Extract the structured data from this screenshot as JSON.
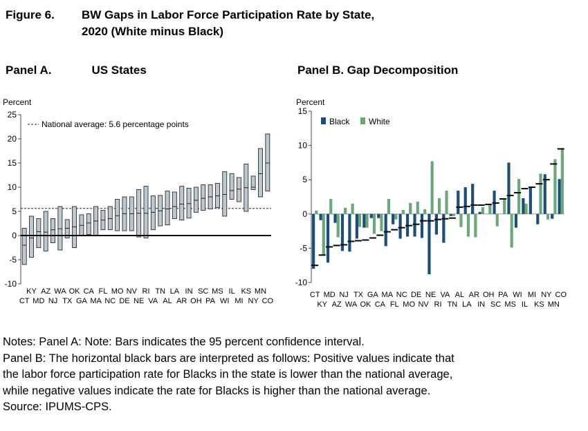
{
  "figure": {
    "number": "Figure 6.",
    "title_line1": "BW Gaps in Labor Force Participation Rate by State,",
    "title_line2": "2020 (White minus Black)"
  },
  "panelA": {
    "title_label": "Panel A.",
    "title_text": "US States"
  },
  "panelB": {
    "title": "Panel B. Gap Decomposition"
  },
  "notes": [
    "Notes: Panel A: Note: Bars indicates the 95 percent confidence interval.",
    "Panel B: The horizontal black bars are interpreted as follows: Positive values indicate that",
    "the labor force participation rate for Blacks in the state is lower than the national average,",
    "while negative values indicate the rate for Blacks is higher than the national average.",
    "Source: IPUMS-CPS."
  ],
  "colors": {
    "ci_fill": "#bcc8cf",
    "ci_stroke": "#2b2b2b",
    "black_series": "#1b4f7a",
    "white_series": "#6aa879"
  },
  "chart_data": [
    {
      "type": "bar",
      "subtype": "range-bar",
      "ylabel": "Percent",
      "ylim": [
        -10,
        25
      ],
      "yticks": [
        -10,
        -5,
        0,
        5,
        10,
        15,
        20,
        25
      ],
      "grid": false,
      "reference_line": {
        "value": 5.6,
        "label": "National average: 5.6 percentage points",
        "style": "dashed"
      },
      "categories": [
        "CT",
        "KY",
        "MD",
        "AZ",
        "NJ",
        "WA",
        "TX",
        "OK",
        "GA",
        "CA",
        "MA",
        "FL",
        "NC",
        "MO",
        "DE",
        "NV",
        "NE",
        "RI",
        "VA",
        "TN",
        "AL",
        "LA",
        "AR",
        "IN",
        "OH",
        "SC",
        "PA",
        "MS",
        "WI",
        "IL",
        "MI",
        "KS",
        "NY",
        "MN",
        "CO"
      ],
      "low": [
        -6.0,
        -4.5,
        -2.5,
        -3.2,
        -1.5,
        -3.0,
        -0.5,
        -2.5,
        0.0,
        0.2,
        0.0,
        1.2,
        1.2,
        1.0,
        1.0,
        1.0,
        -0.3,
        -0.5,
        1.2,
        2.0,
        2.2,
        3.5,
        3.2,
        3.6,
        4.8,
        5.2,
        5.5,
        5.8,
        4.0,
        7.5,
        7.0,
        5.0,
        9.5,
        8.0,
        9.2
      ],
      "high": [
        1.5,
        4.0,
        3.5,
        5.0,
        3.5,
        6.0,
        3.3,
        6.0,
        4.3,
        4.5,
        6.0,
        5.2,
        6.0,
        7.5,
        8.0,
        8.0,
        9.5,
        10.2,
        8.2,
        8.3,
        9.2,
        9.0,
        10.2,
        9.8,
        10.0,
        10.5,
        10.5,
        10.8,
        13.2,
        12.8,
        12.0,
        14.8,
        12.3,
        18.0,
        21.0
      ],
      "estimate": [
        -2.0,
        -0.5,
        0.8,
        0.7,
        1.2,
        1.4,
        1.5,
        1.8,
        2.1,
        2.6,
        3.0,
        3.2,
        3.5,
        4.1,
        4.5,
        4.5,
        4.6,
        4.6,
        4.8,
        5.1,
        5.5,
        6.0,
        6.5,
        6.6,
        7.3,
        7.7,
        8.0,
        8.2,
        8.5,
        9.3,
        9.6,
        9.9,
        10.0,
        12.8,
        15.0
      ]
    },
    {
      "type": "bar",
      "subtype": "diverging-stacked",
      "ylabel": "Percent",
      "ylim": [
        -10,
        15
      ],
      "yticks": [
        -10,
        -5,
        0,
        5,
        10,
        15
      ],
      "grid": false,
      "legend": {
        "position": "top-left",
        "entries": [
          "Black",
          "White"
        ]
      },
      "categories": [
        "CT",
        "KY",
        "MD",
        "AZ",
        "NJ",
        "WA",
        "TX",
        "OK",
        "GA",
        "CA",
        "MA",
        "FL",
        "NC",
        "MO",
        "DE",
        "NV",
        "NE",
        "RI",
        "VA",
        "TN",
        "AL",
        "LA",
        "AR",
        "IN",
        "OH",
        "SC",
        "PA",
        "MS",
        "WI",
        "IL",
        "MI",
        "KS",
        "NY",
        "MN",
        "CO"
      ],
      "series": [
        {
          "name": "Black",
          "values": [
            -8.0,
            -0.9,
            -7.1,
            -1.3,
            -5.4,
            -5.5,
            -3.6,
            -2.0,
            -0.6,
            -0.6,
            -4.7,
            -1.5,
            -3.6,
            -3.3,
            -3.3,
            -3.5,
            -8.8,
            -3.0,
            -4.2,
            -0.3,
            3.4,
            3.9,
            4.4,
            0.3,
            0.0,
            3.4,
            0.0,
            7.5,
            -2.0,
            2.3,
            3.9,
            -1.5,
            5.8,
            -0.7,
            5.1
          ]
        },
        {
          "name": "White",
          "values": [
            0.5,
            -6.0,
            2.2,
            -3.4,
            0.9,
            1.5,
            -1.9,
            -2.0,
            -2.9,
            -2.5,
            2.2,
            -0.8,
            0.6,
            1.6,
            1.8,
            0.7,
            7.7,
            2.3,
            3.4,
            -0.3,
            -1.9,
            -3.3,
            -3.4,
            1.0,
            1.4,
            -1.8,
            2.2,
            -4.9,
            5.1,
            1.5,
            0.0,
            5.9,
            -0.8,
            8.0,
            9.4
          ]
        }
      ],
      "net_gap": [
        -7.5,
        -6.0,
        -4.8,
        -4.6,
        -4.5,
        -4.0,
        -3.9,
        -3.8,
        -3.5,
        -3.1,
        -2.6,
        -2.3,
        -2.0,
        -1.7,
        -1.5,
        -1.0,
        -1.0,
        -0.8,
        -0.7,
        -0.6,
        1.0,
        1.1,
        1.3,
        1.3,
        1.4,
        1.6,
        2.2,
        2.7,
        3.1,
        3.7,
        3.9,
        4.4,
        5.0,
        7.3,
        9.5
      ]
    }
  ]
}
